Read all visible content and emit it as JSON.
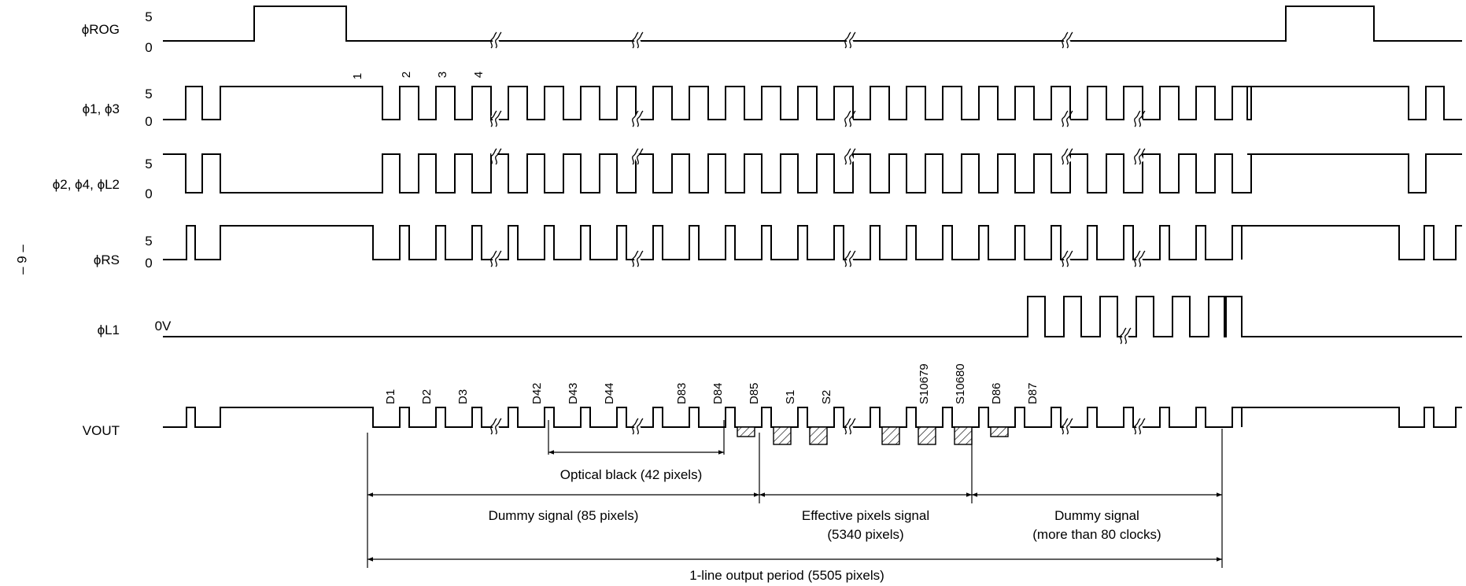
{
  "page_number": "– 9 –",
  "signals": [
    {
      "key": "rog",
      "label": "ϕROG",
      "high": "5",
      "low": "0"
    },
    {
      "key": "p13",
      "label": "ϕ1, ϕ3",
      "high": "5",
      "low": "0"
    },
    {
      "key": "p24",
      "label": "ϕ2, ϕ4, ϕL2",
      "high": "5",
      "low": "0"
    },
    {
      "key": "rs",
      "label": "ϕRS",
      "high": "5",
      "low": "0"
    },
    {
      "key": "l1",
      "label": "ϕL1",
      "high": "",
      "low": "0V"
    },
    {
      "key": "vout",
      "label": "VOUT",
      "high": "",
      "low": ""
    }
  ],
  "clock_numbers": [
    "1",
    "2",
    "3",
    "4"
  ],
  "pixel_labels": [
    "D1",
    "D2",
    "D3",
    "D42",
    "D43",
    "D44",
    "D83",
    "D84",
    "D85",
    "S1",
    "S2",
    "S10679",
    "S10680",
    "D86",
    "D87"
  ],
  "annotations": {
    "optical_black": "Optical black (42 pixels)",
    "dummy_front": "Dummy signal (85 pixels)",
    "effective_line1": "Effective pixels signal",
    "effective_line2": "(5340 pixels)",
    "dummy_back_line1": "Dummy signal",
    "dummy_back_line2": "(more than 80 clocks)",
    "line_period": "1-line output period (5505 pixels)"
  }
}
